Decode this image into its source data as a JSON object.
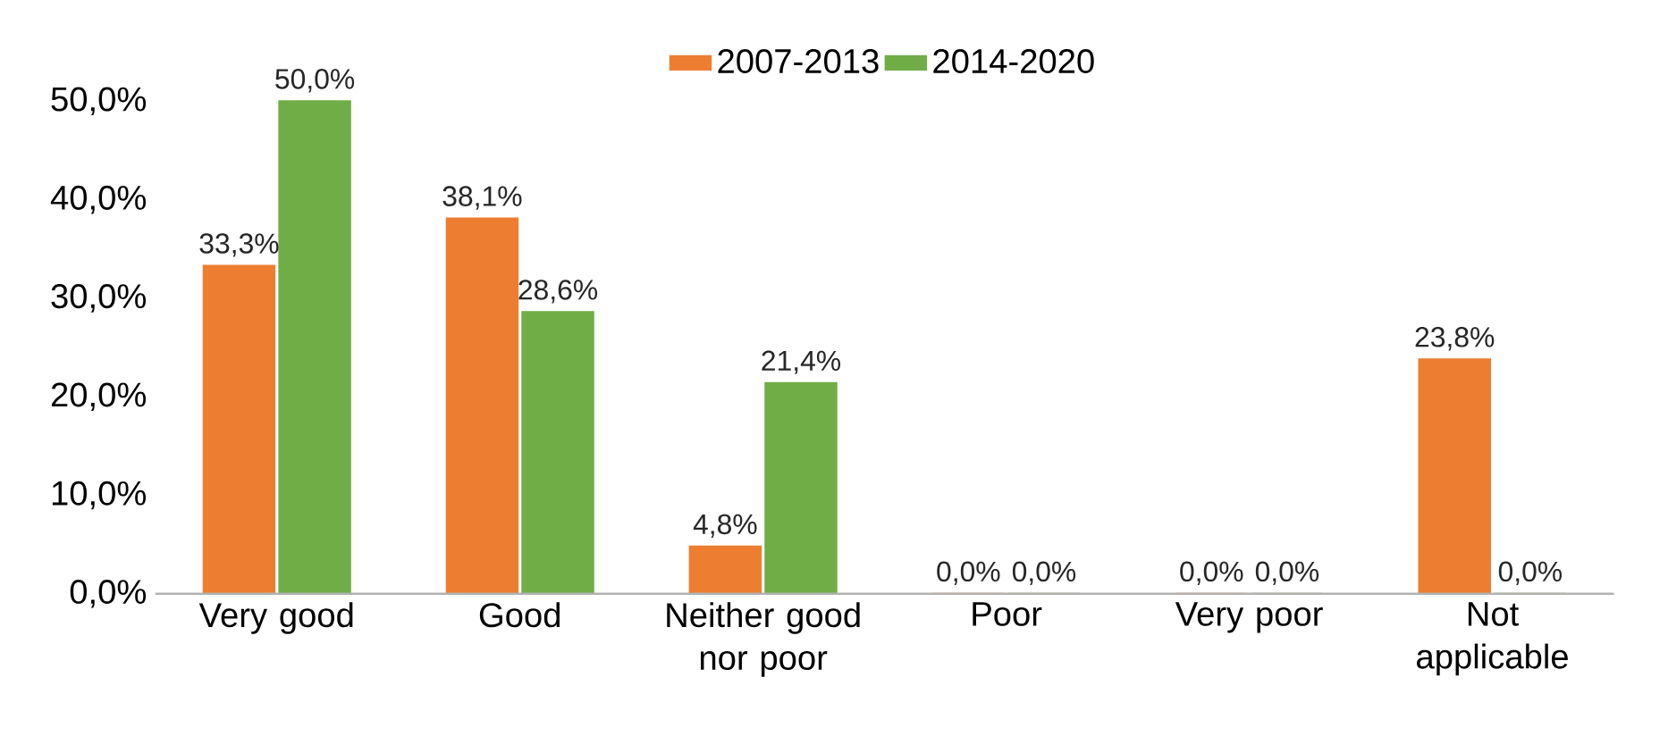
{
  "chart_data": {
    "type": "bar",
    "categories": [
      "Very good",
      "Good",
      "Neither good nor poor",
      "Poor",
      "Very poor",
      "Not applicable"
    ],
    "series": [
      {
        "name": "2007-2013",
        "color": "#ed7d31",
        "values": [
          33.3,
          38.1,
          4.8,
          0.0,
          0.0,
          23.8
        ],
        "value_labels": [
          "33,3%",
          "38,1%",
          "4,8%",
          "0,0%",
          "0,0%",
          "23,8%"
        ]
      },
      {
        "name": "2014-2020",
        "color": "#70ad47",
        "values": [
          50.0,
          28.6,
          21.4,
          0.0,
          0.0,
          0.0
        ],
        "value_labels": [
          "50,0%",
          "28,6%",
          "21,4%",
          "0,0%",
          "0,0%",
          "0,0%"
        ]
      }
    ],
    "ylim": [
      0,
      50
    ],
    "yticks": [
      {
        "value": 0,
        "label": "0,0%"
      },
      {
        "value": 10,
        "label": "10,0%"
      },
      {
        "value": 20,
        "label": "20,0%"
      },
      {
        "value": 30,
        "label": "30,0%"
      },
      {
        "value": 40,
        "label": "40,0%"
      },
      {
        "value": 50,
        "label": "50,0%"
      }
    ],
    "grid": false,
    "legend": "top"
  }
}
